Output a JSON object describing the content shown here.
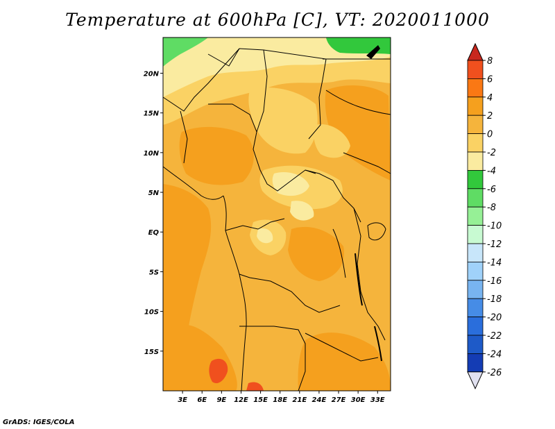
{
  "title": "Temperature at 600hPa [C], VT: 2020011000",
  "footer": "GrADS: IGES/COLA",
  "map": {
    "lon_range": [
      0,
      35
    ],
    "lat_range": [
      -20,
      24.5
    ],
    "lon_labels": [
      "3E",
      "6E",
      "9E",
      "12E",
      "15E",
      "18E",
      "21E",
      "24E",
      "27E",
      "30E",
      "33E"
    ],
    "lon_values": [
      3,
      6,
      9,
      12,
      15,
      18,
      21,
      24,
      27,
      30,
      33
    ],
    "lat_labels": [
      "20N",
      "15N",
      "10N",
      "5N",
      "EQ",
      "5S",
      "10S",
      "15S"
    ],
    "lat_values": [
      20,
      15,
      10,
      5,
      0,
      -5,
      -10,
      -15
    ]
  },
  "colorbar": {
    "levels": [
      "8",
      "6",
      "4",
      "2",
      "0",
      "-2",
      "-4",
      "-6",
      "-8",
      "-10",
      "-12",
      "-14",
      "-16",
      "-18",
      "-20",
      "-22",
      "-24",
      "-26"
    ],
    "colors": [
      "#c8281e",
      "#f0501e",
      "#fa7814",
      "#f5a01e",
      "#f5b43c",
      "#fad264",
      "#faeba0",
      "#32c83c",
      "#5fdc64",
      "#96f096",
      "#c8fad2",
      "#c8e6fa",
      "#a0d2fa",
      "#78b4f0",
      "#468ce6",
      "#2a6edc",
      "#1e5ac8",
      "#143cb4",
      "#0a1e8c",
      "#e1e1f0"
    ]
  },
  "field_colors": {
    "orange_deep": "#f5a01e",
    "orange": "#f5b43c",
    "yellow": "#fad264",
    "pale": "#faeba0",
    "green": "#32c83c",
    "light_green": "#5fdc64",
    "red": "#f0501e"
  }
}
